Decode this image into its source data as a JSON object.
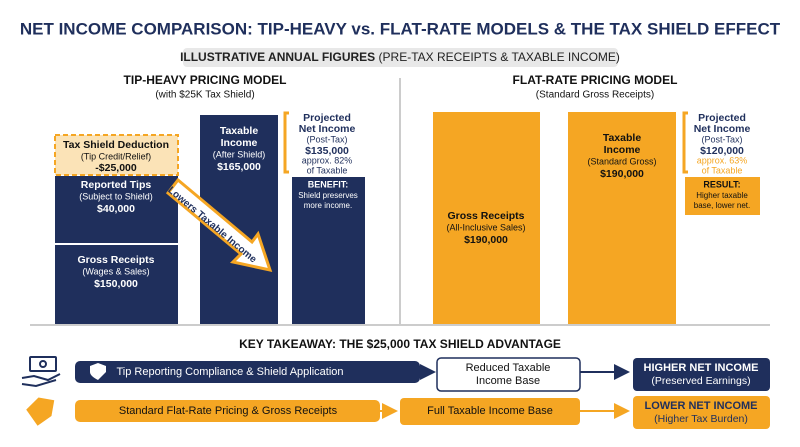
{
  "header": {
    "title": "NET INCOME COMPARISON: TIP-HEAVY vs. FLAT-RATE MODELS & THE TAX SHIELD EFFECT",
    "subtitle_bold": "ILLUSTRATIVE ANNUAL FIGURES",
    "subtitle_rest": "(PRE-TAX RECEIPTS & TAXABLE INCOME)"
  },
  "left": {
    "title": "TIP-HEAVY PRICING MODEL",
    "subtitle": "(with $25K Tax Shield)",
    "shield": [
      "Tax Shield Deduction",
      "(Tip Credit/Relief)",
      "-$25,000"
    ],
    "tips": [
      "Reported Tips",
      "(Subject to Shield)",
      "$40,000"
    ],
    "gross": [
      "Gross Receipts",
      "(Wages & Sales)",
      "$150,000"
    ],
    "taxable": [
      "Taxable",
      "Income",
      "(After Shield)",
      "$165,000"
    ],
    "net": [
      "Projected",
      "Net Income",
      "(Post-Tax)",
      "$135,000",
      "approx. 82%",
      "of Taxable"
    ],
    "note": [
      "BENEFIT:",
      "Shield preserves",
      "more income."
    ],
    "arrow": "Lowers Taxable Income"
  },
  "right": {
    "title": "FLAT-RATE PRICING MODEL",
    "subtitle": "(Standard Gross Receipts)",
    "gross": [
      "Gross Receipts",
      "(All-Inclusive Sales)",
      "$190,000"
    ],
    "taxable": [
      "Taxable",
      "Income",
      "(Standard Gross)",
      "$190,000"
    ],
    "net": [
      "Projected",
      "Net Income",
      "(Post-Tax)",
      "$120,000",
      "approx. 63%",
      "of Taxable"
    ],
    "note": [
      "RESULT:",
      "Higher taxable",
      "base, lower net."
    ]
  },
  "takeaway": {
    "title": "KEY TAKEAWAY: THE $25,000 TAX SHIELD ADVANTAGE",
    "rows": [
      {
        "start": "Tip Reporting Compliance & Shield Application",
        "middle": [
          "Reduced Taxable",
          "Income Base"
        ],
        "end": [
          "HIGHER NET INCOME",
          "(Preserved Earnings)"
        ]
      },
      {
        "start": "Standard Flat-Rate Pricing & Gross Receipts",
        "middle": [
          "Full Taxable Income Base"
        ],
        "end": [
          "LOWER NET INCOME",
          "(Higher Tax Burden)"
        ]
      }
    ]
  }
}
